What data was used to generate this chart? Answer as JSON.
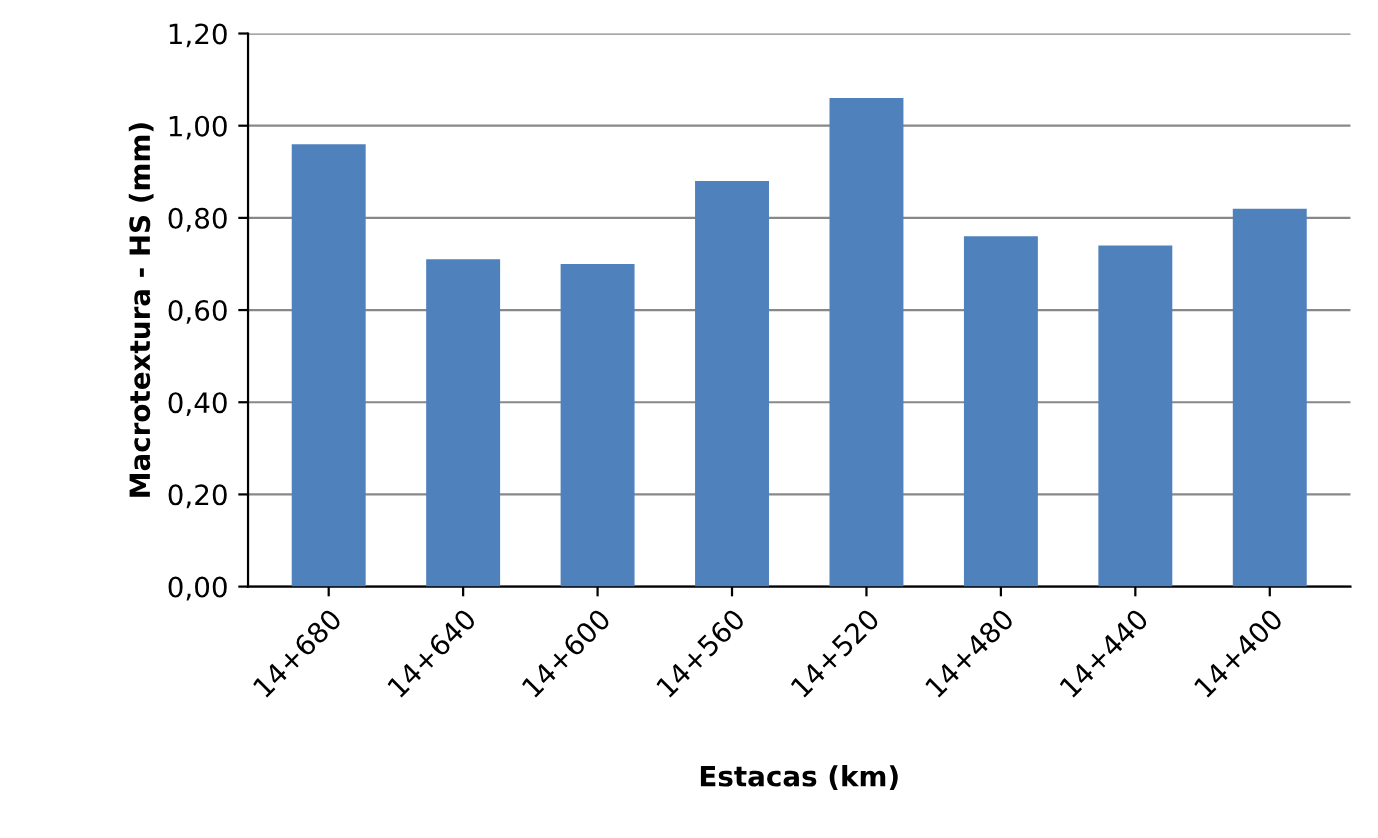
{
  "chart_data": {
    "type": "bar",
    "xlabel": "Estacas (km)",
    "ylabel": "Macrotextura - HS (mm)",
    "categories": [
      "14+680",
      "14+640",
      "14+600",
      "14+560",
      "14+520",
      "14+480",
      "14+440",
      "14+400"
    ],
    "series": [
      {
        "color": "#4f81bd",
        "values": [
          0.96,
          0.71,
          0.7,
          0.88,
          1.06,
          0.76,
          0.74,
          0.82
        ]
      }
    ],
    "ylim": [
      0,
      1.2
    ],
    "yticks": [
      {
        "value": 0,
        "label": "0,00"
      },
      {
        "value": 0.2,
        "label": "0,20"
      },
      {
        "value": 0.4,
        "label": "0,40"
      },
      {
        "value": 0.6,
        "label": "0,60"
      },
      {
        "value": 0.8,
        "label": "0,80"
      },
      {
        "value": 1.0,
        "label": "1,00"
      },
      {
        "value": 1.2,
        "label": "1,20"
      }
    ],
    "grid": "y",
    "legend": false
  }
}
